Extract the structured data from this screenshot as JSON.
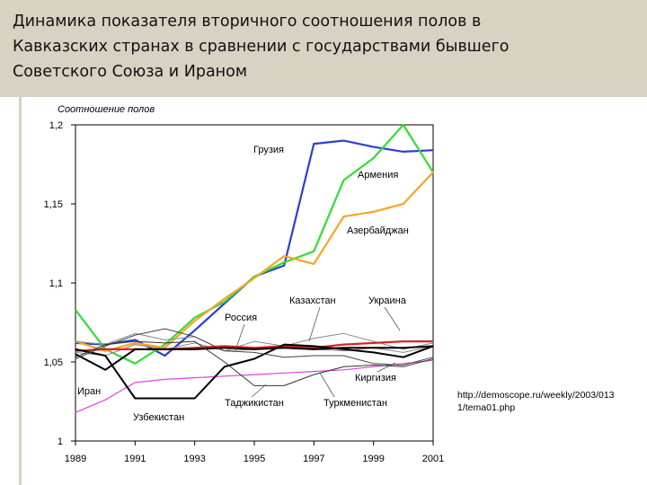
{
  "slide": {
    "title_lines": [
      "Динамика показателя вторичного соотношения полов в",
      "Кавказских странах в сравнении с государствами бывшего",
      "Советского Союза и Ираном"
    ],
    "source_lines": [
      "http://demoscope.ru/weekly/2003/013",
      "1/tema01.php"
    ]
  },
  "chart_data": {
    "type": "line",
    "title": "",
    "ylabel": "Соотношение полов",
    "xlabel": "",
    "xlim": [
      1989,
      2001
    ],
    "ylim": [
      1.0,
      1.2
    ],
    "xticks": [
      1989,
      1991,
      1993,
      1995,
      1997,
      1999,
      2001
    ],
    "yticks": [
      {
        "value": 1.2,
        "label": "1,2"
      },
      {
        "value": 1.15,
        "label": "1,15"
      },
      {
        "value": 1.1,
        "label": "1,1"
      },
      {
        "value": 1.05,
        "label": "1,05"
      },
      {
        "value": 1.0,
        "label": "1"
      }
    ],
    "x": [
      1989,
      1990,
      1991,
      1992,
      1993,
      1994,
      1995,
      1996,
      1997,
      1998,
      1999,
      2000,
      2001
    ],
    "series": [
      {
        "name": "Грузия",
        "color": "#2b3fd6",
        "width": 2.2,
        "values": [
          1.062,
          1.061,
          1.064,
          1.054,
          1.07,
          1.087,
          1.104,
          1.111,
          1.188,
          1.19,
          1.186,
          1.183,
          1.184
        ]
      },
      {
        "name": "Армения",
        "color": "#33dd33",
        "width": 2.2,
        "values": [
          1.083,
          1.058,
          1.049,
          1.061,
          1.078,
          1.088,
          1.104,
          1.113,
          1.12,
          1.165,
          1.179,
          1.2,
          1.17
        ]
      },
      {
        "name": "Азербайджан",
        "color": "#f5a623",
        "width": 2.2,
        "values": [
          1.063,
          1.057,
          1.062,
          1.059,
          1.076,
          1.09,
          1.103,
          1.117,
          1.112,
          1.142,
          1.145,
          1.15,
          1.17
        ]
      },
      {
        "name": "Казахстан",
        "color": "#8a8a8a",
        "width": 1.0,
        "values": [
          1.056,
          1.054,
          1.061,
          1.058,
          1.062,
          1.057,
          1.058,
          1.06,
          1.058,
          1.057,
          1.059,
          1.056,
          1.06
        ]
      },
      {
        "name": "Украина",
        "color": "#8a8a8a",
        "width": 1.0,
        "values": [
          1.063,
          1.061,
          1.068,
          1.064,
          1.066,
          1.057,
          1.063,
          1.06,
          1.065,
          1.068,
          1.063,
          1.058,
          1.062
        ]
      },
      {
        "name": "Россия",
        "color": "#dd2222",
        "width": 2.2,
        "values": [
          1.057,
          1.058,
          1.058,
          1.058,
          1.059,
          1.06,
          1.059,
          1.06,
          1.059,
          1.061,
          1.062,
          1.063,
          1.063
        ]
      },
      {
        "name": "Киргизия",
        "color": "#dd44dd",
        "width": 1.2,
        "values": [
          1.018,
          1.026,
          1.037,
          1.039,
          1.04,
          1.041,
          1.042,
          1.043,
          1.044,
          1.045,
          1.047,
          1.049,
          1.051
        ]
      },
      {
        "name": "Иран",
        "color": "#000000",
        "width": 2.0,
        "values": [
          1.055,
          1.045,
          1.058,
          1.058,
          1.058,
          1.059,
          1.058,
          1.059,
          1.058,
          1.059,
          1.059,
          1.059,
          1.06
        ]
      },
      {
        "name": "Узбекистан",
        "color": "#000000",
        "width": 2.0,
        "values": [
          1.058,
          1.054,
          1.027,
          1.027,
          1.027,
          1.047,
          1.052,
          1.061,
          1.06,
          1.058,
          1.056,
          1.053,
          1.06
        ]
      },
      {
        "name": "Таджикистан",
        "color": "#333333",
        "width": 1.0,
        "values": [
          1.053,
          1.061,
          1.063,
          1.062,
          1.063,
          1.05,
          1.035,
          1.035,
          1.042,
          1.047,
          1.048,
          1.047,
          1.052
        ]
      },
      {
        "name": "Туркменистан",
        "color": "#444444",
        "width": 1.0,
        "values": [
          1.052,
          1.06,
          1.067,
          1.071,
          1.066,
          1.057,
          1.056,
          1.053,
          1.054,
          1.054,
          1.049,
          1.048,
          1.053
        ]
      }
    ],
    "annotations": [
      {
        "text": "Грузия",
        "series": "Грузия"
      },
      {
        "text": "Армения",
        "series": "Армения"
      },
      {
        "text": "Азербайджан",
        "series": "Азербайджан"
      },
      {
        "text": "Казахстан",
        "series": "Казахстан"
      },
      {
        "text": "Украина",
        "series": "Украина"
      },
      {
        "text": "Россия",
        "series": "Россия"
      },
      {
        "text": "Киргизия",
        "series": "Киргизия"
      },
      {
        "text": "Иран",
        "series": "Иран"
      },
      {
        "text": "Узбекистан",
        "series": "Узбекистан"
      },
      {
        "text": "Таджикистан",
        "series": "Таджикистан"
      },
      {
        "text": "Туркменистан",
        "series": "Туркменистан"
      }
    ]
  }
}
